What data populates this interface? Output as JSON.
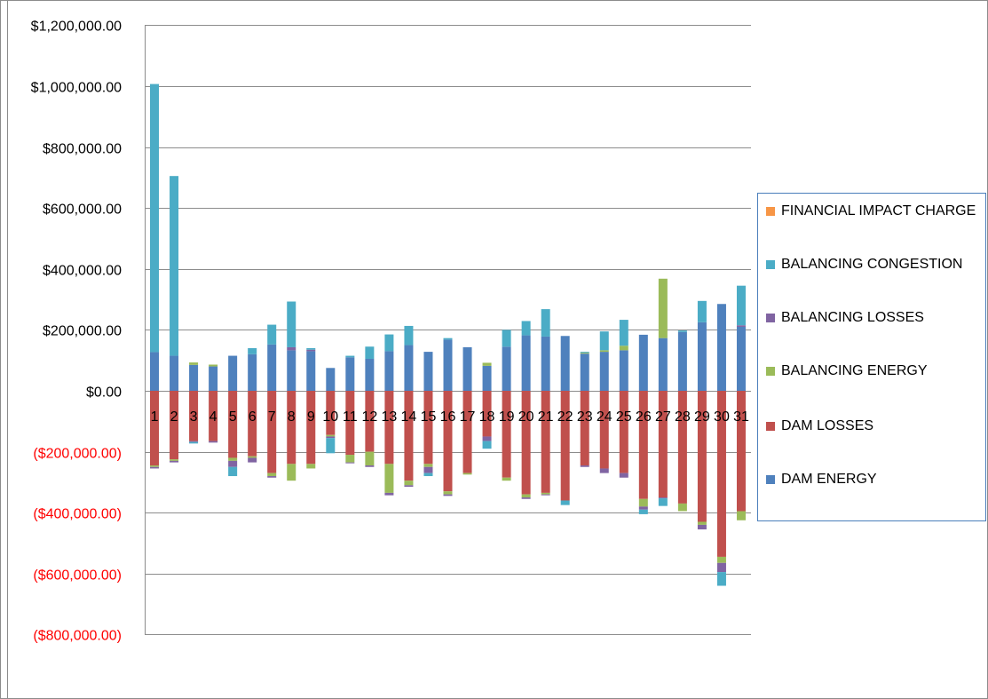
{
  "chart_data": {
    "type": "bar",
    "stacked": true,
    "categories": [
      "1",
      "2",
      "3",
      "4",
      "5",
      "6",
      "7",
      "8",
      "9",
      "10",
      "11",
      "12",
      "13",
      "14",
      "15",
      "16",
      "17",
      "18",
      "19",
      "20",
      "21",
      "22",
      "23",
      "24",
      "25",
      "26",
      "27",
      "28",
      "29",
      "30",
      "31"
    ],
    "ylim": [
      -1000000,
      1200000
    ],
    "yticks": [
      {
        "value": 1200000,
        "label": "$1,200,000.00"
      },
      {
        "value": 1000000,
        "label": "$1,000,000.00"
      },
      {
        "value": 800000,
        "label": "$800,000.00"
      },
      {
        "value": 600000,
        "label": "$600,000.00"
      },
      {
        "value": 400000,
        "label": "$400,000.00"
      },
      {
        "value": 200000,
        "label": "$200,000.00"
      },
      {
        "value": 0,
        "label": "$0.00"
      },
      {
        "value": -200000,
        "label": "($200,000.00)"
      },
      {
        "value": -400000,
        "label": "($400,000.00)"
      },
      {
        "value": -600000,
        "label": "($600,000.00)"
      },
      {
        "value": -800000,
        "label": "($800,000.00)"
      }
    ],
    "negative_label_color": "#ff0000",
    "grid": true,
    "legend_position": "right",
    "series": [
      {
        "name": "DAM ENERGY",
        "color": "#4f81bd",
        "values": [
          127000,
          115000,
          85000,
          80000,
          115000,
          120000,
          152000,
          133000,
          130000,
          75000,
          110000,
          105000,
          130000,
          150000,
          128000,
          168000,
          143000,
          82000,
          145000,
          182000,
          178000,
          180000,
          122000,
          128000,
          133000,
          184000,
          173000,
          193000,
          225000,
          285000,
          210000
        ]
      },
      {
        "name": "DAM LOSSES",
        "color": "#c0504d",
        "values": [
          -245000,
          -225000,
          -165000,
          -165000,
          -220000,
          -215000,
          -270000,
          -240000,
          -240000,
          -145000,
          -210000,
          -200000,
          -240000,
          -295000,
          -240000,
          -330000,
          -270000,
          -150000,
          -285000,
          -340000,
          -335000,
          -360000,
          -245000,
          -255000,
          -270000,
          -355000,
          -350000,
          -370000,
          -430000,
          -545000,
          -395000
        ]
      },
      {
        "name": "BALANCING ENERGY",
        "color": "#9bbb59",
        "values": [
          -5000,
          -5000,
          8000,
          6000,
          -10000,
          -5000,
          -10000,
          -55000,
          -15000,
          -5000,
          -25000,
          -45000,
          -95000,
          -15000,
          -10000,
          -10000,
          -5000,
          10000,
          -10000,
          -10000,
          -5000,
          0,
          3000,
          5000,
          15000,
          -25000,
          195000,
          -25000,
          -10000,
          -20000,
          -30000
        ]
      },
      {
        "name": "BALANCING LOSSES",
        "color": "#8064a2",
        "values": [
          -5000,
          -5000,
          -3000,
          -5000,
          -20000,
          -15000,
          -5000,
          10000,
          5000,
          -5000,
          -3000,
          -5000,
          -8000,
          -5000,
          -20000,
          -5000,
          0,
          -15000,
          0,
          -5000,
          -3000,
          0,
          -5000,
          -15000,
          -15000,
          -10000,
          -3000,
          0,
          -15000,
          -30000,
          5000
        ]
      },
      {
        "name": "BALANCING CONGESTION",
        "color": "#4bacc6",
        "values": [
          880000,
          590000,
          -5000,
          0,
          -30000,
          20000,
          65000,
          150000,
          5000,
          -50000,
          5000,
          40000,
          55000,
          63000,
          -10000,
          5000,
          0,
          -25000,
          55000,
          47000,
          90000,
          -15000,
          3000,
          62000,
          85000,
          -15000,
          -25000,
          5000,
          70000,
          -45000,
          130000
        ]
      },
      {
        "name": "FINANCIAL IMPACT CHARGE",
        "color": "#f79646",
        "values": [
          0,
          0,
          0,
          0,
          0,
          0,
          0,
          0,
          0,
          0,
          0,
          0,
          0,
          0,
          0,
          0,
          0,
          0,
          0,
          0,
          0,
          0,
          0,
          0,
          0,
          0,
          0,
          0,
          0,
          0,
          0
        ]
      }
    ]
  },
  "legend": {
    "items": [
      {
        "label": "FINANCIAL IMPACT CHARGE",
        "color": "#f79646"
      },
      {
        "label": "BALANCING CONGESTION",
        "color": "#4bacc6"
      },
      {
        "label": "BALANCING LOSSES",
        "color": "#8064a2"
      },
      {
        "label": "BALANCING ENERGY",
        "color": "#9bbb59"
      },
      {
        "label": "DAM LOSSES",
        "color": "#c0504d"
      },
      {
        "label": "DAM ENERGY",
        "color": "#4f81bd"
      }
    ]
  }
}
